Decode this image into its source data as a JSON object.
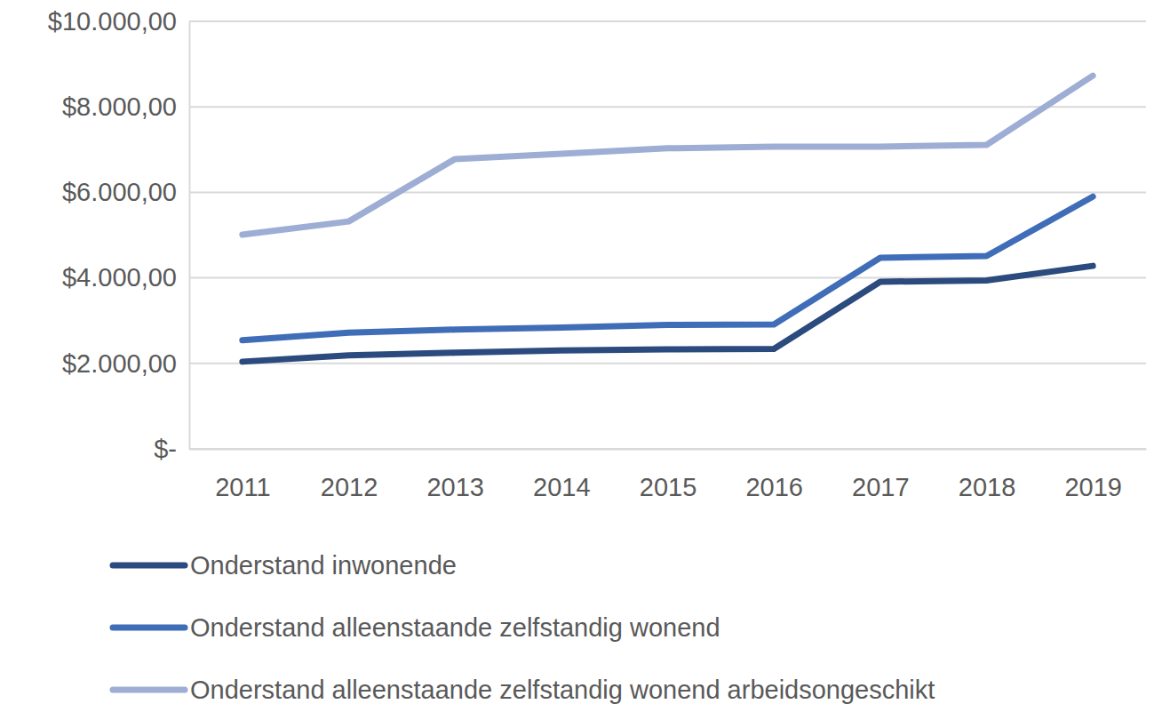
{
  "chart_data": {
    "type": "line",
    "categories": [
      "2011",
      "2012",
      "2013",
      "2014",
      "2015",
      "2016",
      "2017",
      "2018",
      "2019"
    ],
    "series": [
      {
        "name": "Onderstand inwonende",
        "color": "#2b4a7e",
        "values": [
          2040,
          2190,
          2250,
          2300,
          2330,
          2340,
          3910,
          3940,
          4280
        ]
      },
      {
        "name": "Onderstand alleenstaande zelfstandig wonend",
        "color": "#3f6db7",
        "values": [
          2540,
          2720,
          2790,
          2840,
          2900,
          2910,
          4470,
          4510,
          5900
        ]
      },
      {
        "name": "Onderstand alleenstaande zelfstandig wonend arbeidsongeschikt",
        "color": "#9dadd4",
        "values": [
          5010,
          5320,
          6780,
          6900,
          7030,
          7070,
          7070,
          7110,
          8730
        ]
      }
    ],
    "ylim": [
      0,
      10000
    ],
    "yticks": [
      {
        "value": 0,
        "label": "$-"
      },
      {
        "value": 2000,
        "label": "$2.000,00"
      },
      {
        "value": 4000,
        "label": "$4.000,00"
      },
      {
        "value": 6000,
        "label": "$6.000,00"
      },
      {
        "value": 8000,
        "label": "$8.000,00"
      },
      {
        "value": 10000,
        "label": "$10.000,00"
      }
    ],
    "grid": true,
    "legend": "bottom"
  }
}
